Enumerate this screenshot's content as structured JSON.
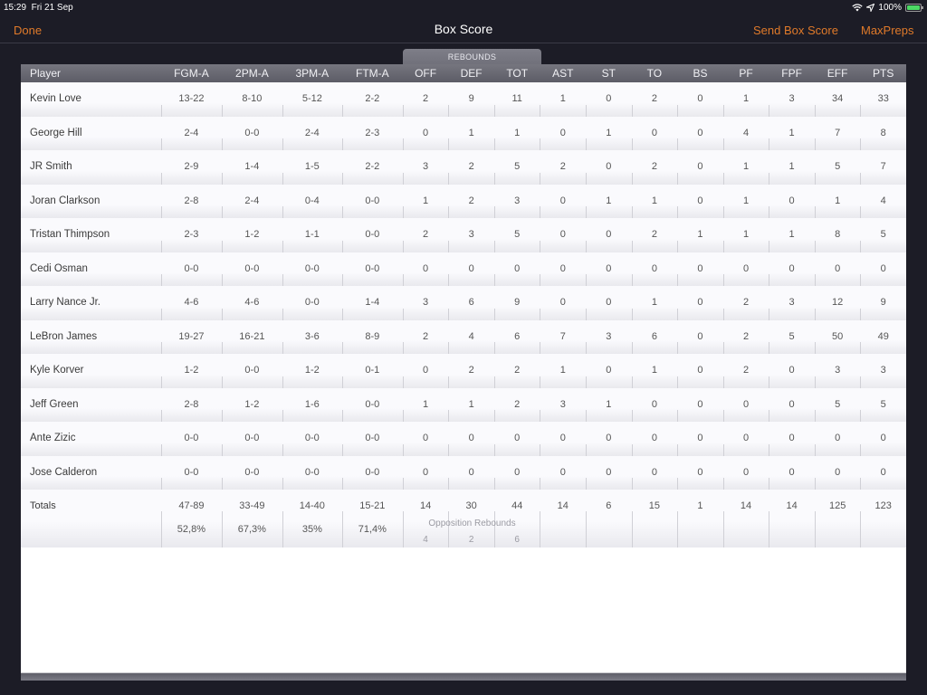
{
  "status_bar": {
    "time": "15:29",
    "date": "Fri 21 Sep",
    "battery": "100%",
    "icons": [
      "wifi-icon",
      "location-icon",
      "battery-charging-icon"
    ]
  },
  "nav": {
    "done_label": "Done",
    "title": "Box Score",
    "send_label": "Send Box Score",
    "maxpreps_label": "MaxPreps"
  },
  "rebounds_tab": "REBOUNDS",
  "columns": [
    "Player",
    "FGM-A",
    "2PM-A",
    "3PM-A",
    "FTM-A",
    "OFF",
    "DEF",
    "TOT",
    "AST",
    "ST",
    "TO",
    "BS",
    "PF",
    "FPF",
    "EFF",
    "PTS"
  ],
  "players": [
    [
      "Kevin Love",
      "13-22",
      "8-10",
      "5-12",
      "2-2",
      "2",
      "9",
      "11",
      "1",
      "0",
      "2",
      "0",
      "1",
      "3",
      "34",
      "33"
    ],
    [
      "George Hill",
      "2-4",
      "0-0",
      "2-4",
      "2-3",
      "0",
      "1",
      "1",
      "0",
      "1",
      "0",
      "0",
      "4",
      "1",
      "7",
      "8"
    ],
    [
      "JR Smith",
      "2-9",
      "1-4",
      "1-5",
      "2-2",
      "3",
      "2",
      "5",
      "2",
      "0",
      "2",
      "0",
      "1",
      "1",
      "5",
      "7"
    ],
    [
      "Joran Clarkson",
      "2-8",
      "2-4",
      "0-4",
      "0-0",
      "1",
      "2",
      "3",
      "0",
      "1",
      "1",
      "0",
      "1",
      "0",
      "1",
      "4"
    ],
    [
      "Tristan Thimpson",
      "2-3",
      "1-2",
      "1-1",
      "0-0",
      "2",
      "3",
      "5",
      "0",
      "0",
      "2",
      "1",
      "1",
      "1",
      "8",
      "5"
    ],
    [
      "Cedi Osman",
      "0-0",
      "0-0",
      "0-0",
      "0-0",
      "0",
      "0",
      "0",
      "0",
      "0",
      "0",
      "0",
      "0",
      "0",
      "0",
      "0"
    ],
    [
      "Larry Nance Jr.",
      "4-6",
      "4-6",
      "0-0",
      "1-4",
      "3",
      "6",
      "9",
      "0",
      "0",
      "1",
      "0",
      "2",
      "3",
      "12",
      "9"
    ],
    [
      "LeBron James",
      "19-27",
      "16-21",
      "3-6",
      "8-9",
      "2",
      "4",
      "6",
      "7",
      "3",
      "6",
      "0",
      "2",
      "5",
      "50",
      "49"
    ],
    [
      "Kyle Korver",
      "1-2",
      "0-0",
      "1-2",
      "0-1",
      "0",
      "2",
      "2",
      "1",
      "0",
      "1",
      "0",
      "2",
      "0",
      "3",
      "3"
    ],
    [
      "Jeff Green",
      "2-8",
      "1-2",
      "1-6",
      "0-0",
      "1",
      "1",
      "2",
      "3",
      "1",
      "0",
      "0",
      "0",
      "0",
      "5",
      "5"
    ],
    [
      "Ante Zizic",
      "0-0",
      "0-0",
      "0-0",
      "0-0",
      "0",
      "0",
      "0",
      "0",
      "0",
      "0",
      "0",
      "0",
      "0",
      "0",
      "0"
    ],
    [
      "Jose Calderon",
      "0-0",
      "0-0",
      "0-0",
      "0-0",
      "0",
      "0",
      "0",
      "0",
      "0",
      "0",
      "0",
      "0",
      "0",
      "0",
      "0"
    ]
  ],
  "totals": {
    "label": "Totals",
    "values": [
      "47-89",
      "33-49",
      "14-40",
      "15-21",
      "14",
      "30",
      "44",
      "14",
      "6",
      "15",
      "1",
      "14",
      "14",
      "125",
      "123"
    ],
    "percentages": [
      "52,8%",
      "67,3%",
      "35%",
      "71,4%"
    ],
    "opposition_rebounds_label": "Opposition Rebounds",
    "opposition_rebounds": [
      "4",
      "2",
      "6"
    ]
  }
}
